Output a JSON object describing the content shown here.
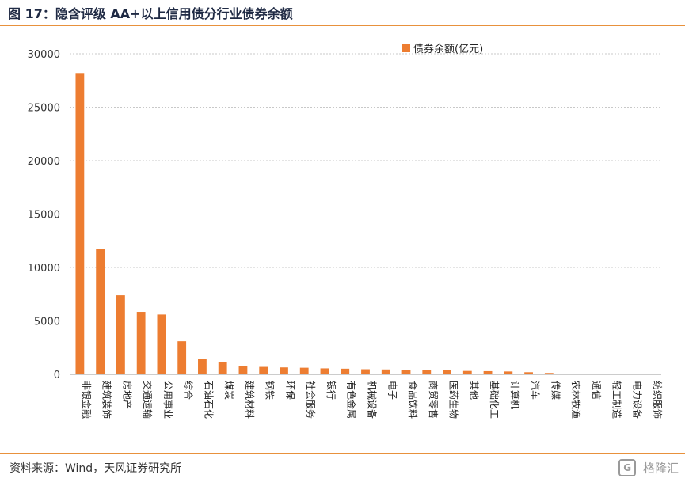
{
  "figure_title": "图 17：隐含评级 AA+以上信用债分行业债券余额",
  "source_note": "资料来源：Wind，天风证券研究所",
  "watermark": "格隆汇",
  "colors": {
    "bar": "#ed7d31",
    "accent_rule": "#e8913c",
    "grid": "#c8c8c8"
  },
  "chart_data": {
    "type": "bar",
    "title": "",
    "xlabel": "",
    "ylabel": "",
    "ylim": [
      0,
      30000
    ],
    "yticks": [
      0,
      5000,
      10000,
      15000,
      20000,
      25000,
      30000
    ],
    "grid": true,
    "legend_position": "top-right",
    "categories": [
      "非银金融",
      "建筑装饰",
      "房地产",
      "交通运输",
      "公用事业",
      "综合",
      "石油石化",
      "煤炭",
      "建筑材料",
      "钢铁",
      "环保",
      "社会服务",
      "银行",
      "有色金属",
      "机械设备",
      "电子",
      "食品饮料",
      "商贸零售",
      "医药生物",
      "其他",
      "基础化工",
      "计算机",
      "汽车",
      "传媒",
      "农林牧渔",
      "通信",
      "轻工制造",
      "电力设备",
      "纺织服饰"
    ],
    "series": [
      {
        "name": "债券余额(亿元)",
        "values": [
          28200,
          11750,
          7400,
          5850,
          5600,
          3100,
          1450,
          1180,
          750,
          700,
          650,
          620,
          560,
          530,
          480,
          460,
          440,
          420,
          380,
          320,
          300,
          270,
          200,
          130,
          60,
          35,
          25,
          15,
          10
        ]
      }
    ]
  }
}
